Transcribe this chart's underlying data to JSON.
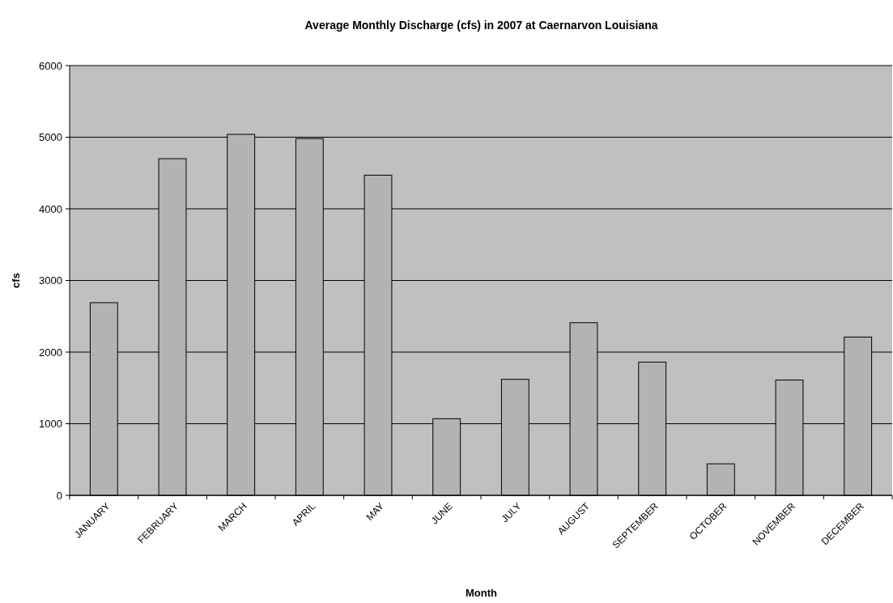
{
  "chart_data": {
    "type": "bar",
    "title": "Average Monthly Discharge (cfs) in 2007 at Caernarvon Louisiana",
    "xlabel": "Month",
    "ylabel": "cfs",
    "categories": [
      "JANUARY",
      "FEBRUARY",
      "MARCH",
      "APRIL",
      "MAY",
      "JUNE",
      "JULY",
      "AUGUST",
      "SEPTEMBER",
      "OCTOBER",
      "NOVEMBER",
      "DECEMBER"
    ],
    "values": [
      2690,
      4700,
      5040,
      4980,
      4470,
      1070,
      1620,
      2410,
      1860,
      440,
      1610,
      2210
    ],
    "color": "#b3b3b3",
    "ylim": [
      0,
      6000
    ],
    "yticks": [
      0,
      1000,
      2000,
      3000,
      4000,
      5000,
      6000
    ],
    "grid": "y"
  }
}
